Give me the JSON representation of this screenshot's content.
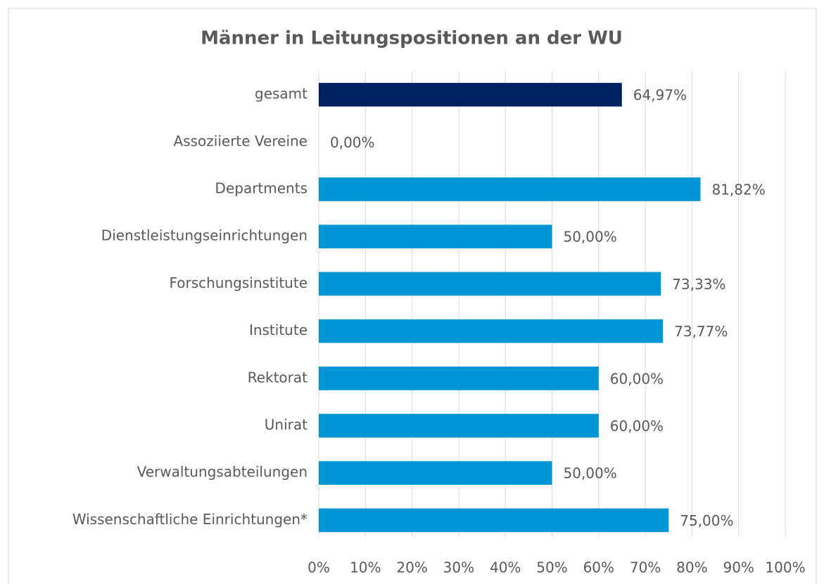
{
  "chart_data": {
    "type": "bar",
    "orientation": "horizontal",
    "title": "Männer in Leitungspositionen an der WU",
    "categories": [
      "gesamt",
      "Assoziierte Vereine",
      "Departments",
      "Dienstleistungseinrichtungen",
      "Forschungsinstitute",
      "Institute",
      "Rektorat",
      "Unirat",
      "Verwaltungsabteilungen",
      "Wissenschaftliche Einrichtungen*"
    ],
    "values": [
      64.97,
      0,
      81.82,
      50,
      73.33,
      73.77,
      60,
      60,
      50,
      75
    ],
    "value_labels": [
      "64,97%",
      "0,00%",
      "81,82%",
      "50,00%",
      "73,33%",
      "73,77%",
      "60,00%",
      "60,00%",
      "50,00%",
      "75,00%"
    ],
    "colors": [
      "#002060",
      "#0096d6",
      "#0096d6",
      "#0096d6",
      "#0096d6",
      "#0096d6",
      "#0096d6",
      "#0096d6",
      "#0096d6",
      "#0096d6"
    ],
    "xlim": [
      0,
      100
    ],
    "xticks": [
      {
        "value": 0,
        "label": "0%"
      },
      {
        "value": 10,
        "label": "10%"
      },
      {
        "value": 20,
        "label": "20%"
      },
      {
        "value": 30,
        "label": "30%"
      },
      {
        "value": 40,
        "label": "40%"
      },
      {
        "value": 50,
        "label": "50%"
      },
      {
        "value": 60,
        "label": "60%"
      },
      {
        "value": 70,
        "label": "70%"
      },
      {
        "value": 80,
        "label": "80%"
      },
      {
        "value": 90,
        "label": "90%"
      },
      {
        "value": 100,
        "label": "100%"
      }
    ],
    "grid": true
  }
}
